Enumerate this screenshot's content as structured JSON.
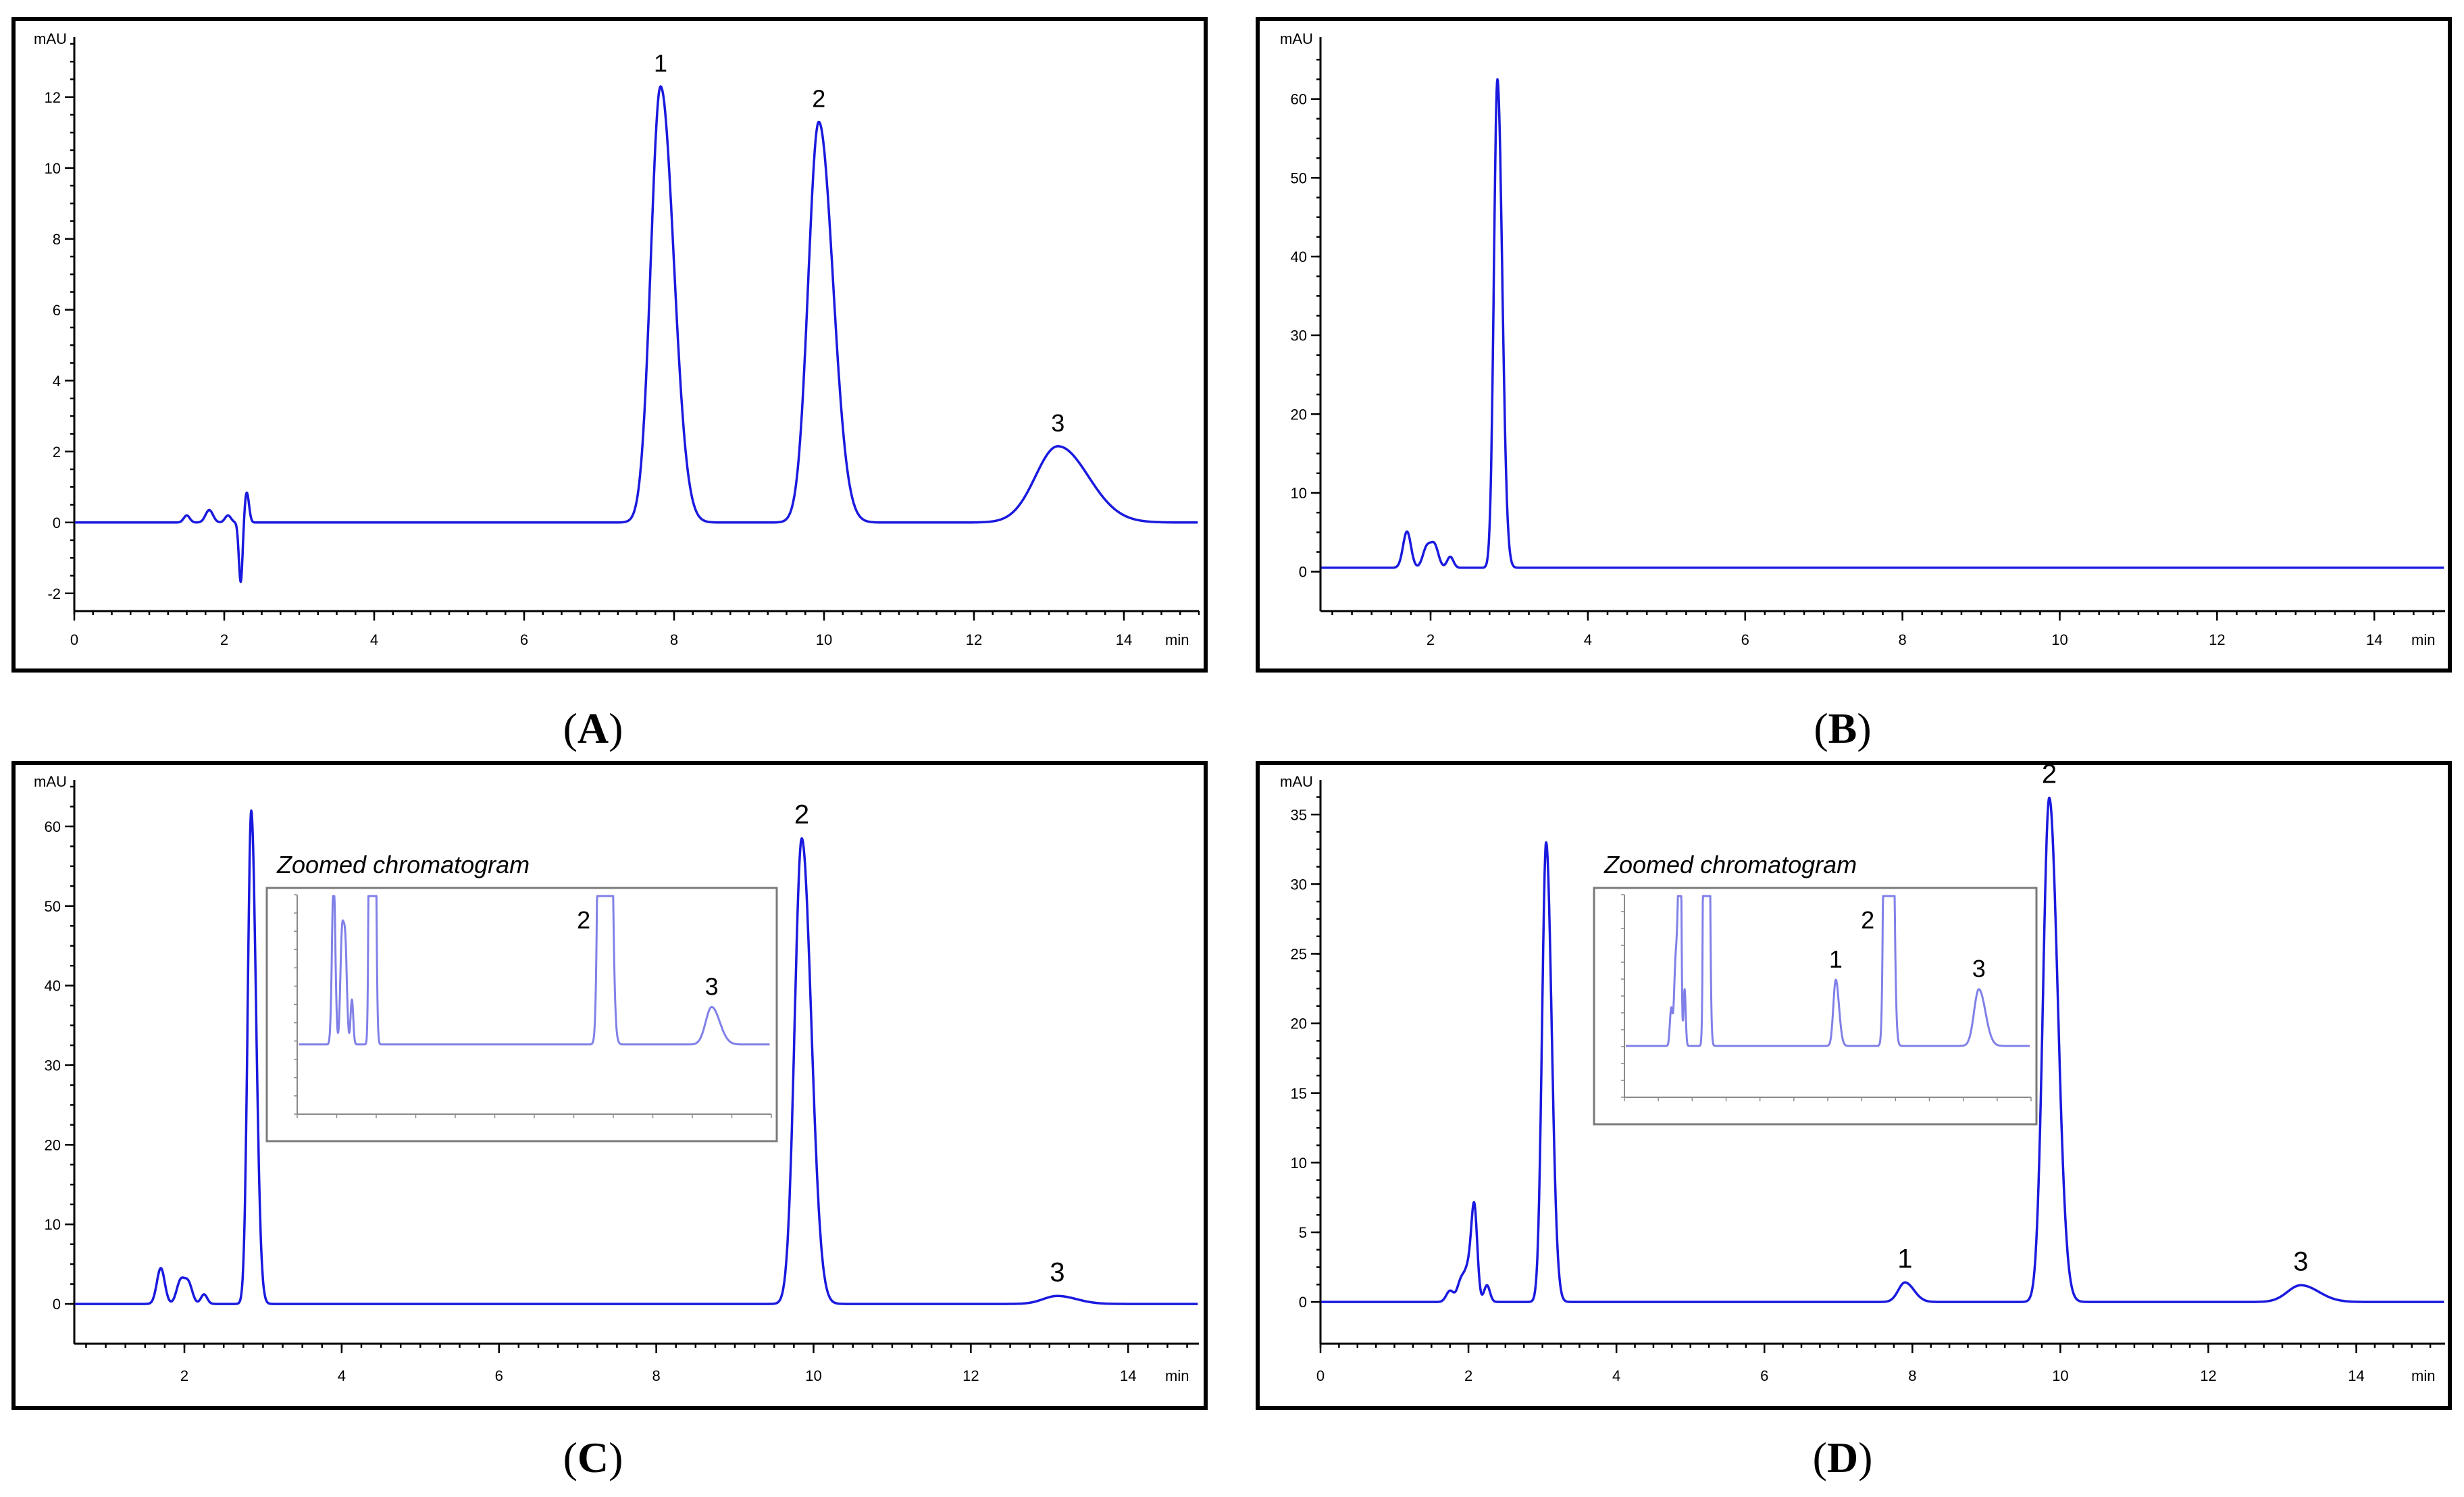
{
  "figure": {
    "colors": {
      "trace": "#1a1adf",
      "inset_trace": "#8080e8",
      "frame": "#000000"
    }
  },
  "chart_data": [
    {
      "id": "A",
      "type": "line",
      "caption": "A",
      "y_unit": "mAU",
      "x_unit": "min",
      "xlim": [
        0,
        15
      ],
      "ylim": [
        -2.5,
        13.5
      ],
      "x_ticks": [
        0,
        2,
        4,
        6,
        8,
        10,
        12,
        14
      ],
      "y_ticks": [
        -2,
        0,
        2,
        4,
        6,
        8,
        10,
        12
      ],
      "baseline": 0,
      "spikes": [
        [
          1.5,
          0.2,
          0.04
        ],
        [
          1.8,
          0.35,
          0.05
        ],
        [
          2.05,
          0.2,
          0.04
        ]
      ],
      "dip": {
        "x": 2.22,
        "depth": -1.7,
        "rise": 0.85
      },
      "peaks": [
        {
          "label": "1",
          "rt": 7.82,
          "height": 12.3,
          "width": 0.13
        },
        {
          "label": "2",
          "rt": 9.93,
          "height": 11.3,
          "width": 0.14
        },
        {
          "label": "3",
          "rt": 13.12,
          "height": 2.15,
          "width": 0.3
        }
      ]
    },
    {
      "id": "B",
      "type": "line",
      "caption": "B",
      "y_unit": "mAU",
      "x_unit": "min",
      "xlim": [
        0.6,
        14.9
      ],
      "ylim": [
        -5,
        67
      ],
      "x_ticks": [
        2,
        4,
        6,
        8,
        10,
        12,
        14
      ],
      "y_ticks": [
        0,
        10,
        20,
        30,
        40,
        50,
        60
      ],
      "baseline": 0.5,
      "spikes": [
        [
          1.7,
          4.6,
          0.05
        ],
        [
          1.95,
          2.5,
          0.05
        ],
        [
          2.05,
          2.8,
          0.05
        ],
        [
          2.25,
          1.4,
          0.04
        ]
      ],
      "dip": null,
      "peaks": [
        {
          "label": "",
          "rt": 2.85,
          "height": 62.0,
          "width": 0.045
        }
      ]
    },
    {
      "id": "C",
      "type": "line",
      "caption": "C",
      "y_unit": "mAU",
      "x_unit": "min",
      "xlim": [
        0.6,
        14.9
      ],
      "ylim": [
        -5,
        65
      ],
      "x_ticks": [
        2,
        4,
        6,
        8,
        10,
        12,
        14
      ],
      "y_ticks": [
        0,
        10,
        20,
        30,
        40,
        50,
        60
      ],
      "baseline": 0,
      "spikes": [
        [
          1.7,
          4.5,
          0.05
        ],
        [
          1.95,
          2.8,
          0.05
        ],
        [
          2.05,
          2.6,
          0.05
        ],
        [
          2.25,
          1.2,
          0.04
        ]
      ],
      "dip": null,
      "peaks": [
        {
          "label": "",
          "rt": 2.85,
          "height": 62.0,
          "width": 0.045
        },
        {
          "label": "2",
          "rt": 9.85,
          "height": 58.5,
          "width": 0.09
        },
        {
          "label": "3",
          "rt": 13.1,
          "height": 1.0,
          "width": 0.18
        }
      ],
      "inset": {
        "title": "Zoomed chromatogram",
        "peaks": [
          {
            "label": "2",
            "clipped": true
          },
          {
            "label": "3",
            "clipped": false
          }
        ]
      }
    },
    {
      "id": "D",
      "type": "line",
      "caption": "D",
      "y_unit": "mAU",
      "x_unit": "min",
      "xlim": [
        0,
        15.2
      ],
      "ylim": [
        -3,
        37
      ],
      "x_ticks": [
        0,
        2,
        4,
        6,
        8,
        10,
        12,
        14
      ],
      "y_ticks": [
        0,
        5,
        10,
        15,
        20,
        25,
        30,
        35
      ],
      "baseline": 0,
      "spikes": [
        [
          1.75,
          0.8,
          0.05
        ],
        [
          1.9,
          1.5,
          0.05
        ],
        [
          2.0,
          2.2,
          0.05
        ],
        [
          2.08,
          6.5,
          0.04
        ],
        [
          2.25,
          1.2,
          0.04
        ]
      ],
      "dip": null,
      "peaks": [
        {
          "label": "",
          "rt": 3.05,
          "height": 33.0,
          "width": 0.055
        },
        {
          "label": "1",
          "rt": 7.9,
          "height": 1.4,
          "width": 0.09
        },
        {
          "label": "2",
          "rt": 9.85,
          "height": 36.2,
          "width": 0.085
        },
        {
          "label": "3",
          "rt": 13.25,
          "height": 1.2,
          "width": 0.18
        }
      ],
      "inset": {
        "title": "Zoomed chromatogram",
        "peaks": [
          {
            "label": "1",
            "clipped": false
          },
          {
            "label": "2",
            "clipped": true
          },
          {
            "label": "3",
            "clipped": false
          }
        ]
      }
    }
  ]
}
